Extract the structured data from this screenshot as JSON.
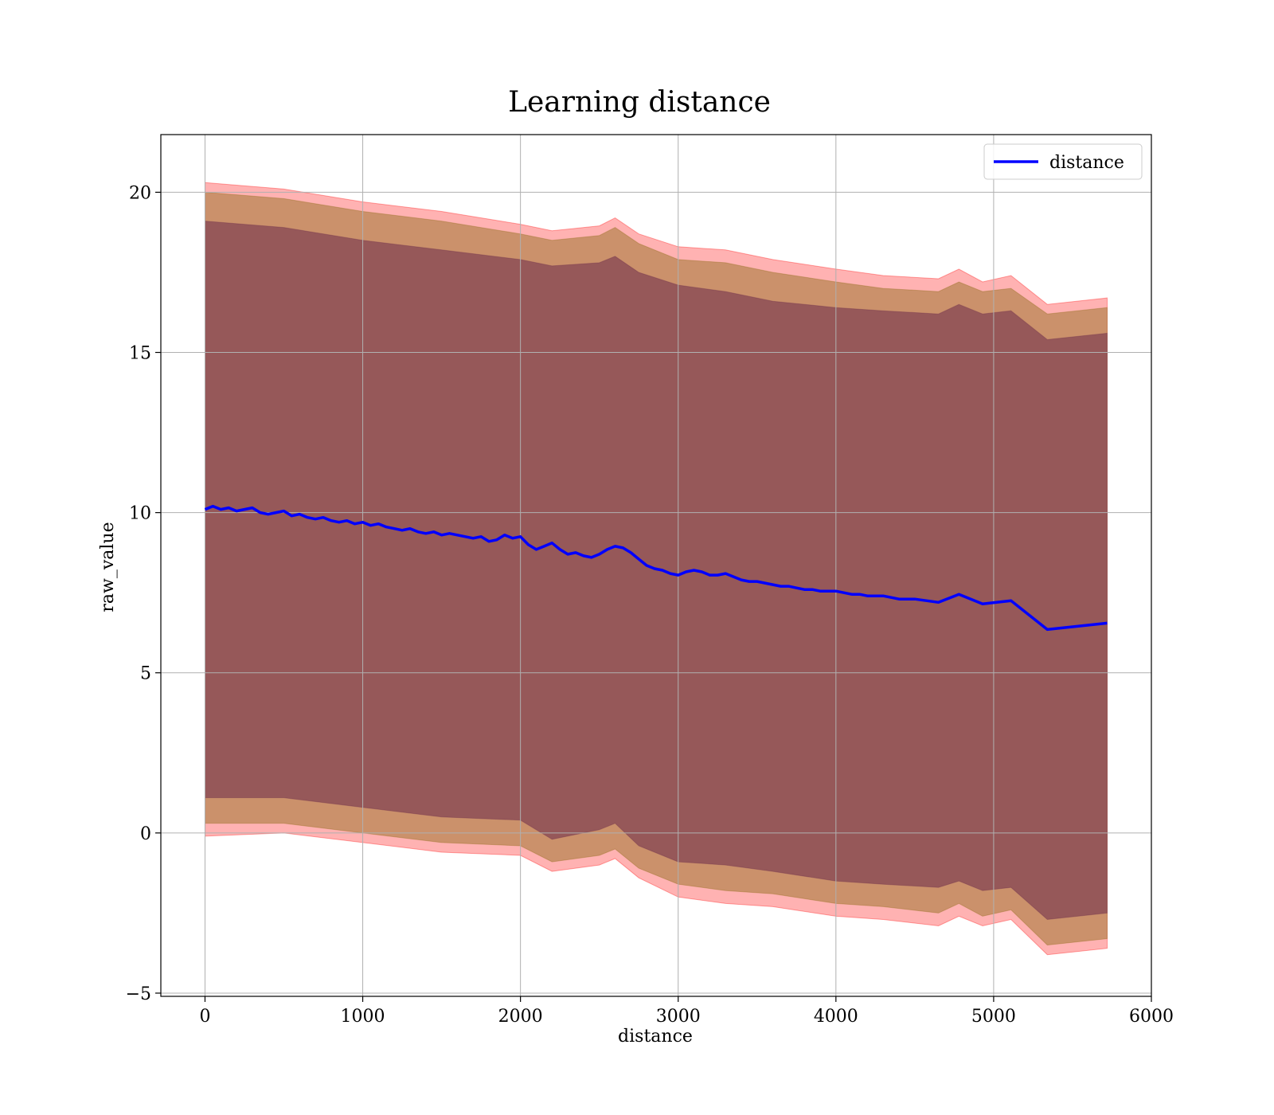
{
  "chart_data": {
    "type": "area",
    "title": "Learning distance",
    "xlabel": "distance",
    "ylabel": "raw_value",
    "xlim": [
      -280,
      6000
    ],
    "ylim": [
      -5.1,
      21.8
    ],
    "xticks": [
      0,
      1000,
      2000,
      3000,
      4000,
      5000,
      6000
    ],
    "yticks": [
      -5,
      0,
      5,
      10,
      15,
      20
    ],
    "ytick_labels": [
      "−5",
      "0",
      "5",
      "10",
      "15",
      "20"
    ],
    "grid": true,
    "legend_position": "top-right",
    "colors": {
      "line": "#0000ff",
      "band_outer": "#ff0000",
      "band_middle": "#8b6914",
      "band_inner": "#6b2a4a",
      "grid": "#b0b0b0"
    },
    "series": [
      {
        "name": "distance",
        "kind": "line",
        "x": [
          0,
          50,
          100,
          150,
          200,
          250,
          300,
          350,
          400,
          450,
          500,
          550,
          600,
          650,
          700,
          750,
          800,
          850,
          900,
          950,
          1000,
          1050,
          1100,
          1150,
          1200,
          1250,
          1300,
          1350,
          1400,
          1450,
          1500,
          1550,
          1600,
          1650,
          1700,
          1750,
          1800,
          1850,
          1900,
          1950,
          2000,
          2050,
          2100,
          2150,
          2200,
          2250,
          2300,
          2350,
          2400,
          2450,
          2500,
          2550,
          2600,
          2650,
          2700,
          2750,
          2800,
          2850,
          2900,
          2950,
          3000,
          3050,
          3100,
          3150,
          3200,
          3250,
          3300,
          3350,
          3400,
          3450,
          3500,
          3550,
          3600,
          3650,
          3700,
          3750,
          3800,
          3850,
          3900,
          3950,
          4000,
          4050,
          4100,
          4150,
          4200,
          4250,
          4300,
          4400,
          4500,
          4650,
          4780,
          4930,
          5110,
          5340,
          5720
        ],
        "values": [
          10.1,
          10.2,
          10.1,
          10.15,
          10.05,
          10.1,
          10.15,
          10.0,
          9.95,
          10.0,
          10.05,
          9.9,
          9.95,
          9.85,
          9.8,
          9.85,
          9.75,
          9.7,
          9.75,
          9.65,
          9.7,
          9.6,
          9.65,
          9.55,
          9.5,
          9.45,
          9.5,
          9.4,
          9.35,
          9.4,
          9.3,
          9.35,
          9.3,
          9.25,
          9.2,
          9.25,
          9.1,
          9.15,
          9.3,
          9.2,
          9.25,
          9.0,
          8.85,
          8.95,
          9.05,
          8.85,
          8.7,
          8.75,
          8.65,
          8.6,
          8.7,
          8.85,
          8.95,
          8.9,
          8.75,
          8.55,
          8.35,
          8.25,
          8.2,
          8.1,
          8.05,
          8.15,
          8.2,
          8.15,
          8.05,
          8.05,
          8.1,
          8.0,
          7.9,
          7.85,
          7.85,
          7.8,
          7.75,
          7.7,
          7.7,
          7.65,
          7.6,
          7.6,
          7.55,
          7.55,
          7.55,
          7.5,
          7.45,
          7.45,
          7.4,
          7.4,
          7.4,
          7.3,
          7.3,
          7.2,
          7.45,
          7.15,
          7.25,
          6.35,
          6.55
        ]
      },
      {
        "name": "outer band",
        "kind": "band",
        "x": [
          0,
          500,
          1000,
          1500,
          2000,
          2200,
          2500,
          2600,
          2750,
          3000,
          3300,
          3600,
          4000,
          4300,
          4650,
          4780,
          4930,
          5110,
          5340,
          5720
        ],
        "upper": [
          20.3,
          20.1,
          19.7,
          19.4,
          19.0,
          18.8,
          18.95,
          19.2,
          18.7,
          18.3,
          18.2,
          17.9,
          17.6,
          17.4,
          17.3,
          17.6,
          17.2,
          17.4,
          16.5,
          16.7
        ],
        "lower": [
          -0.1,
          0.0,
          -0.3,
          -0.6,
          -0.7,
          -1.2,
          -1.0,
          -0.8,
          -1.4,
          -2.0,
          -2.2,
          -2.3,
          -2.6,
          -2.7,
          -2.9,
          -2.6,
          -2.9,
          -2.7,
          -3.8,
          -3.6
        ]
      },
      {
        "name": "middle band",
        "kind": "band",
        "x": [
          0,
          500,
          1000,
          1500,
          2000,
          2200,
          2500,
          2600,
          2750,
          3000,
          3300,
          3600,
          4000,
          4300,
          4650,
          4780,
          4930,
          5110,
          5340,
          5720
        ],
        "upper": [
          20.0,
          19.8,
          19.4,
          19.1,
          18.7,
          18.5,
          18.65,
          18.9,
          18.4,
          17.9,
          17.8,
          17.5,
          17.2,
          17.0,
          16.9,
          17.2,
          16.9,
          17.0,
          16.2,
          16.4
        ],
        "lower": [
          0.3,
          0.3,
          0.0,
          -0.3,
          -0.4,
          -0.9,
          -0.7,
          -0.5,
          -1.1,
          -1.6,
          -1.8,
          -1.9,
          -2.2,
          -2.3,
          -2.5,
          -2.2,
          -2.6,
          -2.4,
          -3.5,
          -3.3
        ]
      },
      {
        "name": "inner band",
        "kind": "band",
        "x": [
          0,
          500,
          1000,
          1500,
          2000,
          2200,
          2500,
          2600,
          2750,
          3000,
          3300,
          3600,
          4000,
          4300,
          4650,
          4780,
          4930,
          5110,
          5340,
          5720
        ],
        "upper": [
          19.1,
          18.9,
          18.5,
          18.2,
          17.9,
          17.7,
          17.8,
          18.0,
          17.5,
          17.1,
          16.9,
          16.6,
          16.4,
          16.3,
          16.2,
          16.5,
          16.2,
          16.3,
          15.4,
          15.6
        ],
        "lower": [
          1.1,
          1.1,
          0.8,
          0.5,
          0.4,
          -0.2,
          0.1,
          0.3,
          -0.4,
          -0.9,
          -1.0,
          -1.2,
          -1.5,
          -1.6,
          -1.7,
          -1.5,
          -1.8,
          -1.7,
          -2.7,
          -2.5
        ]
      }
    ]
  }
}
